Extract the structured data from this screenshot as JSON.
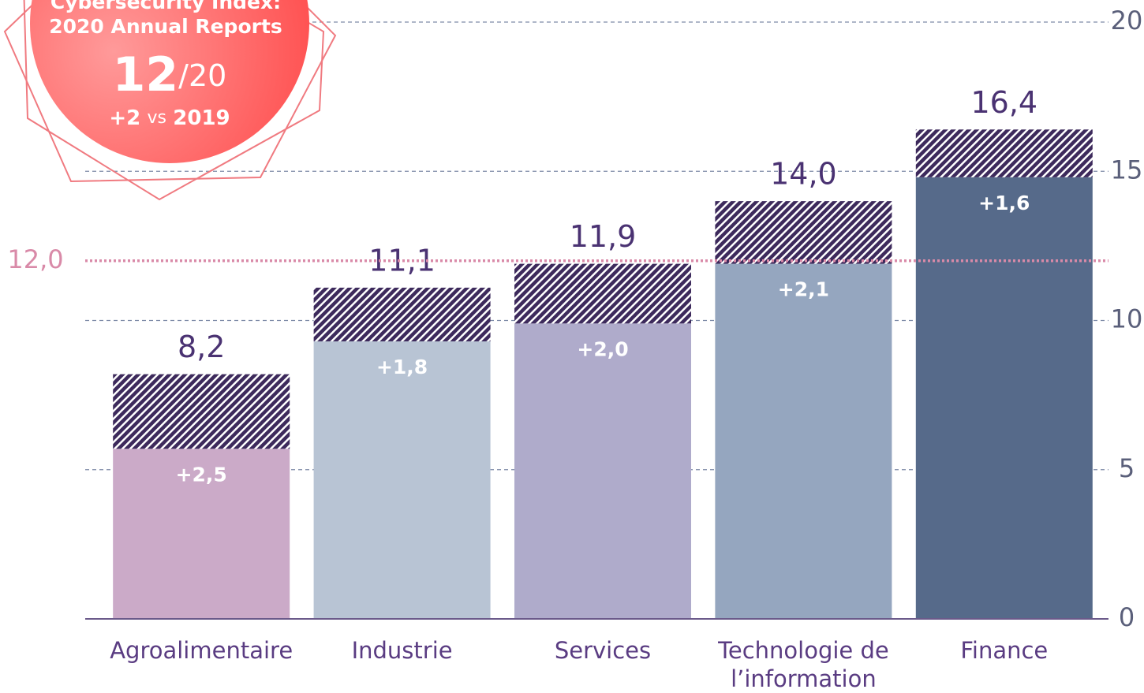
{
  "chart_data": {
    "type": "stacked_bar",
    "categories": [
      "Agroalimentaire",
      "Industrie",
      "Services",
      "Technologie de l’information",
      "Finance"
    ],
    "series": [
      {
        "colors": [
          "#cbaac8",
          "#b8c4d4",
          "#afabcb",
          "#95a6bf",
          "#566a8a"
        ],
        "values": [
          5.7,
          9.3,
          9.9,
          11.9,
          14.8
        ]
      },
      {
        "color": "#3d2a5c",
        "pattern": "hatch",
        "values": [
          2.5,
          1.8,
          2.0,
          2.1,
          1.6
        ],
        "value_labels": [
          "+2,5",
          "+1,8",
          "+2,0",
          "+2,1",
          "+1,6"
        ]
      }
    ],
    "total_labels": [
      "8,2",
      "11,1",
      "11,9",
      "14,0",
      "16,4"
    ],
    "ylim": [
      0,
      20
    ],
    "yticks": [
      0,
      5,
      10,
      15,
      20
    ],
    "grid": true,
    "reference_line": {
      "value": 12,
      "label": "12,0",
      "color": "#d98aa8"
    }
  },
  "badge": {
    "title_line1": "Cybersecurity Index:",
    "title_line2": "2020 Annual Reports",
    "score": "12",
    "out_of": "/20",
    "change": "+2",
    "vs": "vs",
    "year": "2019"
  }
}
